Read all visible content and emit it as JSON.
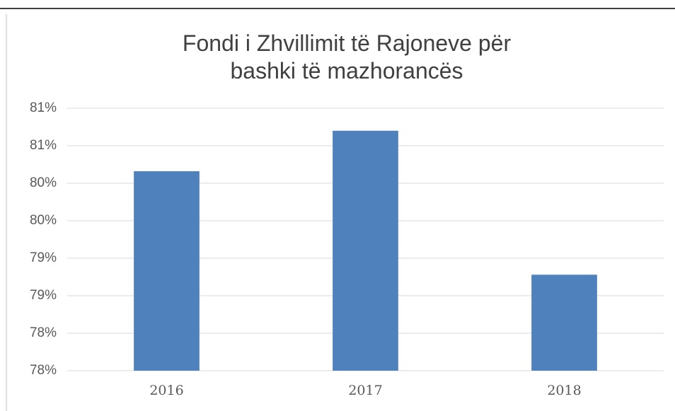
{
  "chart_data": {
    "type": "bar",
    "title": "Fondi i Zhvillimit të Rajoneve për bashki të mazhorancës",
    "categories": [
      "2016",
      "2017",
      "2018"
    ],
    "values": [
      80.16,
      80.7,
      78.78
    ],
    "color": "#4f81bd",
    "ylim": [
      77.5,
      81
    ],
    "yticks": [
      {
        "value": 77.5,
        "label": "78%"
      },
      {
        "value": 78,
        "label": "78%"
      },
      {
        "value": 78.5,
        "label": "79%"
      },
      {
        "value": 79,
        "label": "79%"
      },
      {
        "value": 79.5,
        "label": "80%"
      },
      {
        "value": 80,
        "label": "80%"
      },
      {
        "value": 80.5,
        "label": "81%"
      },
      {
        "value": 81,
        "label": "81%"
      }
    ],
    "grid": true
  }
}
